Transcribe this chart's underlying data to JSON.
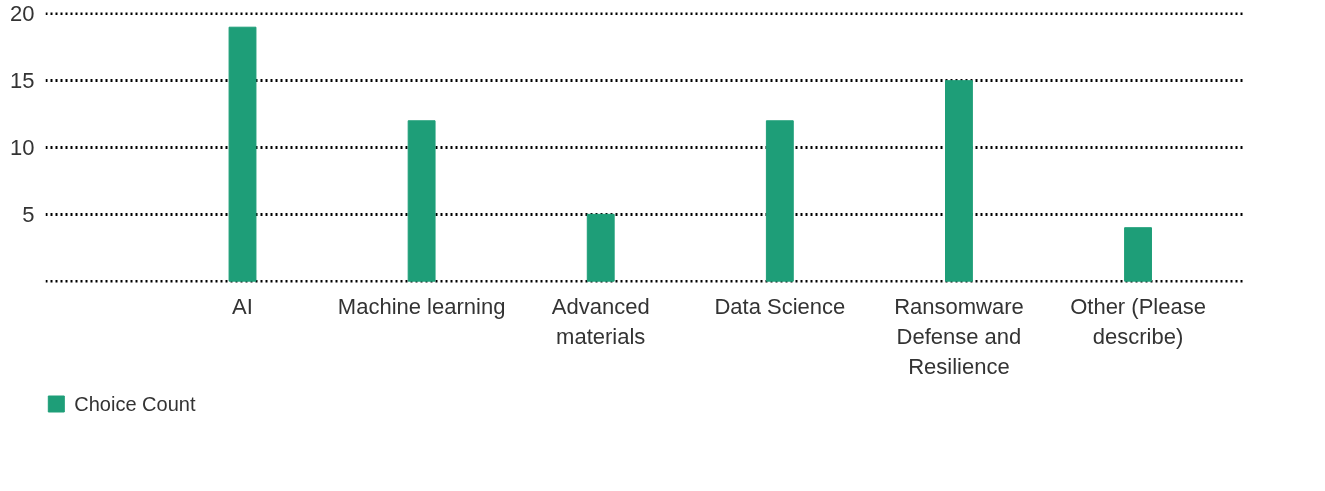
{
  "chart_data": {
    "type": "bar",
    "categories": [
      "AI",
      "Machine learning",
      "Advanced materials",
      "Data Science",
      "Ransomware Defense and Resilience",
      "Other (Please describe)"
    ],
    "series": [
      {
        "name": "Choice Count",
        "color": "#1e9e78",
        "values": [
          19,
          12,
          5,
          12,
          15,
          4
        ]
      }
    ],
    "ylim": [
      -0.1,
      20.1
    ],
    "yticks": [
      {
        "value": 0,
        "label": null
      },
      5,
      10,
      15,
      20
    ],
    "grid": "y",
    "line_style": "dotted",
    "legend": "bottom left"
  }
}
